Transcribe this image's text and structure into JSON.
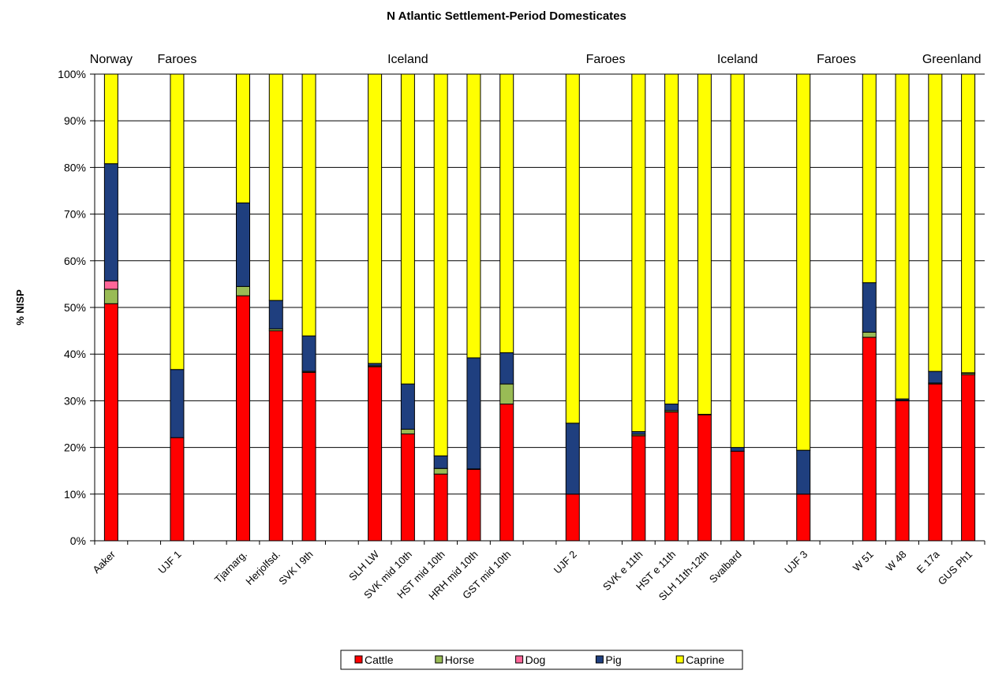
{
  "chart_data": {
    "type": "bar",
    "stacked": true,
    "title": "N Atlantic  Settlement-Period Domesticates",
    "ylabel": "% NISP",
    "xlabel": "",
    "ylim": [
      0,
      100
    ],
    "y_ticks": [
      "0%",
      "10%",
      "20%",
      "30%",
      "40%",
      "50%",
      "60%",
      "70%",
      "80%",
      "90%",
      "100%"
    ],
    "grid": true,
    "legend_position": "bottom-center",
    "region_labels": [
      {
        "text": "Norway",
        "slot": 0
      },
      {
        "text": "Faroes",
        "slot": 2
      },
      {
        "text": "Iceland",
        "slot": 9
      },
      {
        "text": "Faroes",
        "slot": 15
      },
      {
        "text": "Iceland",
        "slot": 19
      },
      {
        "text": "Faroes",
        "slot": 22
      },
      {
        "text": "Greenland",
        "slot": 25.5
      }
    ],
    "categories": [
      "Aaker",
      "",
      "UJF 1",
      "",
      "Tjarnarg.",
      "Herjolfsd.",
      "SVK I 9th",
      "",
      "SLH LW",
      "SVK mid 10th",
      "HST mid 10th",
      "HRH mid 10th",
      "GST mid 10th",
      "",
      "UJF 2",
      "",
      "SVK e 11th",
      "HST e 11th",
      "SLH 11th-12th",
      "Svalbard",
      "",
      "UJF 3",
      "",
      "W 51",
      "W 48",
      "E 17a",
      "GUS Ph1"
    ],
    "series": [
      {
        "name": "Cattle",
        "color": "#ff0000",
        "values": [
          50.8,
          0,
          22.1,
          0,
          52.5,
          45.0,
          36.1,
          0,
          37.3,
          22.9,
          14.3,
          15.3,
          29.3,
          0,
          10.0,
          0,
          22.5,
          27.6,
          27.0,
          19.2,
          0,
          10.0,
          0,
          43.6,
          30.0,
          33.6,
          35.6
        ]
      },
      {
        "name": "Horse",
        "color": "#99bb55",
        "values": [
          3.1,
          0,
          0,
          0,
          2.0,
          0.4,
          0.2,
          0,
          0.2,
          1.0,
          1.2,
          0.1,
          4.3,
          0,
          0,
          0,
          0.3,
          0.3,
          0,
          0,
          0,
          0,
          0,
          1.1,
          0.1,
          0.2,
          0.3
        ]
      },
      {
        "name": "Dog",
        "color": "#ff6699",
        "values": [
          1.8,
          0,
          0,
          0,
          0,
          0,
          0,
          0,
          0,
          0,
          0,
          0,
          0,
          0,
          0,
          0,
          0,
          0,
          0,
          0,
          0,
          0,
          0,
          0,
          0,
          0,
          0
        ]
      },
      {
        "name": "Pig",
        "color": "#1f3f7f",
        "values": [
          25.1,
          0,
          14.6,
          0,
          17.9,
          6.1,
          7.6,
          0,
          0.5,
          9.7,
          2.7,
          23.8,
          6.7,
          0,
          15.2,
          0,
          0.6,
          1.4,
          0.1,
          0.8,
          0,
          9.4,
          0,
          10.6,
          0.3,
          2.5,
          0.1
        ]
      },
      {
        "name": "Caprine",
        "color": "#ffff00",
        "values": [
          19.2,
          0,
          63.3,
          0,
          27.6,
          48.5,
          56.1,
          0,
          62.0,
          66.4,
          81.8,
          60.8,
          59.7,
          0,
          74.8,
          0,
          76.6,
          70.7,
          72.9,
          80.0,
          0,
          80.6,
          0,
          44.7,
          69.6,
          63.7,
          64.0
        ]
      }
    ]
  }
}
